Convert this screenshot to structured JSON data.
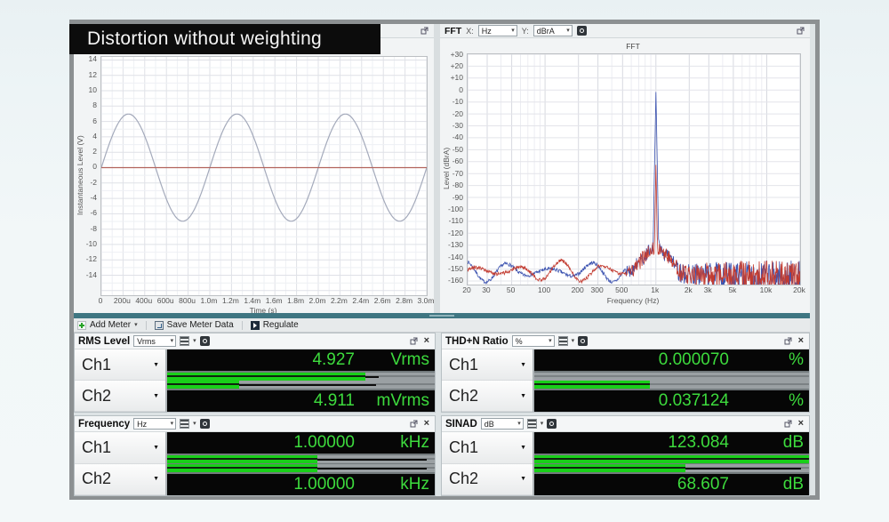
{
  "banner": {
    "title": "Distortion without weighting"
  },
  "scope": {
    "xlabel": "Time (s)",
    "ylabel": "Instantaneous Level (V)",
    "x_tick_labels": [
      "0",
      "200u",
      "400u",
      "600u",
      "800u",
      "1.0m",
      "1.2m",
      "1.4m",
      "1.6m",
      "1.8m",
      "2.0m",
      "2.2m",
      "2.4m",
      "2.6m",
      "2.8m",
      "3.0m"
    ],
    "x_tick_values": [
      0,
      0.0002,
      0.0004,
      0.0006,
      0.0008,
      0.001,
      0.0012,
      0.0014,
      0.0016,
      0.0018,
      0.002,
      0.0022,
      0.0024,
      0.0026,
      0.0028,
      0.003
    ],
    "y_tick_labels": [
      "14",
      "12",
      "10",
      "8",
      "6",
      "4",
      "2",
      "0",
      "-2",
      "-4",
      "-6",
      "-8",
      "-10",
      "-12",
      "-14"
    ],
    "y_tick_values": [
      14,
      12,
      10,
      8,
      6,
      4,
      2,
      0,
      -2,
      -4,
      -6,
      -8,
      -10,
      -12,
      -14
    ],
    "x_min": 0,
    "x_max": 0.003,
    "y_min": -16.6,
    "y_max": 14.4,
    "x_minor_count": 30,
    "trace_ch1": {
      "type": "sine",
      "amplitude_v": 6.97,
      "frequency_hz": 1000,
      "color": "#a4aabb"
    },
    "trace_ch2": {
      "type": "flat",
      "value_v": 0,
      "color": "#b2635c"
    }
  },
  "fft": {
    "header": {
      "title": "FFT",
      "x_label": "X:",
      "x_unit": "Hz",
      "y_label": "Y:",
      "y_unit": "dBrA"
    },
    "plot_title": "FFT",
    "xlabel": "Frequency (Hz)",
    "ylabel": "Level (dBrA)",
    "x_tick_labels": [
      "20",
      "30",
      "50",
      "100",
      "200",
      "300",
      "500",
      "1k",
      "2k",
      "3k",
      "5k",
      "10k",
      "20k"
    ],
    "x_tick_values": [
      20,
      30,
      50,
      100,
      200,
      300,
      500,
      1000,
      2000,
      3000,
      5000,
      10000,
      20000
    ],
    "y_tick_labels": [
      "+30",
      "+20",
      "+10",
      "0",
      "-10",
      "-20",
      "-30",
      "-40",
      "-50",
      "-60",
      "-70",
      "-80",
      "-90",
      "-100",
      "-110",
      "-120",
      "-130",
      "-140",
      "-150",
      "-160"
    ],
    "y_tick_values": [
      30,
      20,
      10,
      0,
      -10,
      -20,
      -30,
      -40,
      -50,
      -60,
      -70,
      -80,
      -90,
      -100,
      -110,
      -120,
      -130,
      -140,
      -150,
      -160
    ],
    "x_min": 20,
    "x_max": 20000,
    "y_min": -163,
    "y_max": 30,
    "peak_freq_hz": 1000,
    "noise_floor_db": -153,
    "series": [
      {
        "name": "Ch1",
        "color": "#3c53b0",
        "peak_db": 0
      },
      {
        "name": "Ch2",
        "color": "#c23b30",
        "peak_db": -61
      }
    ]
  },
  "toolbar": {
    "add_meter": "Add Meter",
    "save_meter_data": "Save Meter Data",
    "regulate": "Regulate"
  },
  "meters": [
    {
      "title": "RMS Level",
      "unit_combo": "Vrms",
      "channels": [
        {
          "label": "Ch1",
          "value": "4.927",
          "unit": "Vrms",
          "bar_fill": 0.74,
          "bar_peak": 0.79
        },
        {
          "label": "Ch2",
          "value": "4.911",
          "unit": "mVrms",
          "bar_fill": 0.27,
          "bar_peak": 0.78
        }
      ]
    },
    {
      "title": "THD+N Ratio",
      "unit_combo": "%",
      "channels": [
        {
          "label": "Ch1",
          "value": "0.000070",
          "unit": "%",
          "bar_fill": 0,
          "bar_peak": 0
        },
        {
          "label": "Ch2",
          "value": "0.037124",
          "unit": "%",
          "bar_fill": 0.42,
          "bar_peak": 0.42
        }
      ]
    },
    {
      "title": "Frequency",
      "unit_combo": "Hz",
      "channels": [
        {
          "label": "Ch1",
          "value": "1.00000",
          "unit": "kHz",
          "bar_fill": 0.56,
          "bar_peak": 0.97
        },
        {
          "label": "Ch2",
          "value": "1.00000",
          "unit": "kHz",
          "bar_fill": 0.56,
          "bar_peak": 0.97
        }
      ]
    },
    {
      "title": "SINAD",
      "unit_combo": "dB",
      "channels": [
        {
          "label": "Ch1",
          "value": "123.084",
          "unit": "dB",
          "bar_fill": 1,
          "bar_peak": 1
        },
        {
          "label": "Ch2",
          "value": "68.607",
          "unit": "dB",
          "bar_fill": 0.55,
          "bar_peak": 0.97
        }
      ]
    }
  ],
  "colors": {
    "accent_green": "#3ddb3d",
    "bar_green": "#19cf19",
    "panel_teal": "#3f7682",
    "display_black": "#060606"
  }
}
